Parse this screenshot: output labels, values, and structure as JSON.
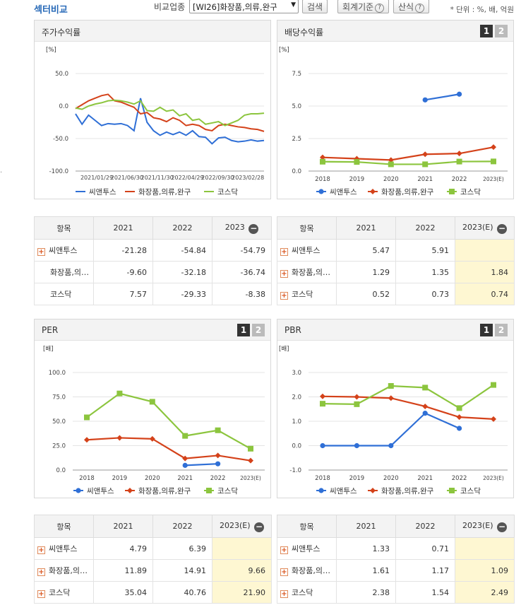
{
  "header": {
    "title": "섹터비교",
    "compare_label": "비교업종",
    "industry_selected": "[WI26]화장품,의류,완구",
    "search_button": "검색",
    "accounting_button": "회계기준",
    "formula_button": "산식",
    "help_glyph": "?",
    "unit_note": "* 단위 : %, 배, 억원"
  },
  "colors": {
    "company": "#2f6fd6",
    "industry": "#d4421a",
    "kosdaq": "#8cc53e"
  },
  "legend": {
    "company": "씨앤투스",
    "industry": "화장품,의류,완구",
    "kosdaq": "코스닥"
  },
  "pager": {
    "page1": "1",
    "page2": "2"
  },
  "tables": {
    "header_item": "항목",
    "minus_glyph": "−",
    "plus_glyph": "+"
  },
  "panels": {
    "stock_return": {
      "title": "주가수익률",
      "unit": "[%]"
    },
    "dividend": {
      "title": "배당수익률",
      "unit": "[%]"
    },
    "per": {
      "title": "PER",
      "unit": "[배]"
    },
    "pbr": {
      "title": "PBR",
      "unit": "[배]"
    }
  },
  "chart_data": [
    {
      "id": "stock_return",
      "type": "line",
      "title": "주가수익률",
      "ylabel": "[%]",
      "ylim": [
        -100,
        50
      ],
      "yticks": [
        "50.0",
        "0.0",
        "-50.0",
        "-100.0"
      ],
      "x_tick_labels": [
        "2021/01/29",
        "2021/06/30",
        "2021/11/30",
        "2022/04/29",
        "2022/09/30",
        "2023/02/28"
      ],
      "series": [
        {
          "name": "씨앤투스",
          "values": [
            -12,
            -28,
            -14,
            -22,
            -30,
            -27,
            -28,
            -27,
            -30,
            -38,
            12,
            -25,
            -38,
            -45,
            -40,
            -44,
            -40,
            -45,
            -38,
            -47,
            -48,
            -58,
            -49,
            -48,
            -53,
            -55,
            -54,
            -52,
            -54,
            -53
          ]
        },
        {
          "name": "화장품,의류,완구",
          "values": [
            -4,
            2,
            8,
            12,
            16,
            18,
            8,
            6,
            2,
            -2,
            -12,
            -10,
            -18,
            -20,
            -24,
            -18,
            -22,
            -30,
            -28,
            -30,
            -36,
            -38,
            -30,
            -28,
            -30,
            -32,
            -33,
            -35,
            -36,
            -39
          ]
        },
        {
          "name": "코스닥",
          "values": [
            -3,
            -5,
            0,
            3,
            5,
            8,
            9,
            8,
            6,
            3,
            8,
            -7,
            -8,
            -2,
            -8,
            -6,
            -15,
            -12,
            -22,
            -20,
            -28,
            -26,
            -24,
            -30,
            -26,
            -22,
            -14,
            -12,
            -12,
            -11
          ]
        }
      ]
    },
    {
      "id": "dividend",
      "type": "line",
      "title": "배당수익률",
      "ylabel": "[%]",
      "ylim": [
        0,
        7.5
      ],
      "yticks": [
        "7.5",
        "5.0",
        "2.5",
        "0.0"
      ],
      "categories": [
        "2018",
        "2019",
        "2020",
        "2021",
        "2022",
        "2023(E)"
      ],
      "series": [
        {
          "name": "씨앤투스",
          "values": [
            null,
            null,
            null,
            5.47,
            5.91,
            null
          ]
        },
        {
          "name": "화장품,의류,완구",
          "values": [
            1.05,
            0.95,
            0.85,
            1.29,
            1.35,
            1.84
          ]
        },
        {
          "name": "코스닥",
          "values": [
            0.72,
            0.7,
            0.52,
            0.52,
            0.73,
            0.74
          ]
        }
      ]
    },
    {
      "id": "per",
      "type": "line",
      "title": "PER",
      "ylabel": "[배]",
      "ylim": [
        0,
        100
      ],
      "yticks": [
        "100.0",
        "75.0",
        "50.0",
        "25.0",
        "0.0"
      ],
      "categories": [
        "2018",
        "2019",
        "2020",
        "2021",
        "2022",
        "2023(E)"
      ],
      "series": [
        {
          "name": "씨앤투스",
          "values": [
            null,
            null,
            null,
            4.79,
            6.39,
            null
          ]
        },
        {
          "name": "화장품,의류,완구",
          "values": [
            31.0,
            33.0,
            32.0,
            11.89,
            14.91,
            9.66
          ]
        },
        {
          "name": "코스닥",
          "values": [
            54.0,
            78.5,
            70.0,
            35.04,
            40.76,
            21.9
          ]
        }
      ]
    },
    {
      "id": "pbr",
      "type": "line",
      "title": "PBR",
      "ylabel": "[배]",
      "ylim": [
        -1,
        3
      ],
      "yticks": [
        "3.0",
        "2.0",
        "1.0",
        "0.0",
        "-1.0"
      ],
      "categories": [
        "2018",
        "2019",
        "2020",
        "2021",
        "2022",
        "2023(E)"
      ],
      "series": [
        {
          "name": "씨앤투스",
          "values": [
            0,
            0,
            0,
            1.33,
            0.71,
            null
          ]
        },
        {
          "name": "화장품,의류,완구",
          "values": [
            2.02,
            2.0,
            1.95,
            1.61,
            1.17,
            1.09
          ]
        },
        {
          "name": "코스닥",
          "values": [
            1.72,
            1.7,
            2.45,
            2.38,
            1.54,
            2.49
          ]
        }
      ]
    }
  ],
  "table_return": {
    "columns": [
      "2021",
      "2022",
      "2023"
    ],
    "rows": [
      {
        "name": "씨앤투스",
        "plus": true,
        "values": [
          "-21.28",
          "-54.84",
          "-54.79"
        ]
      },
      {
        "name": "화장품,의류,완구",
        "plus": false,
        "values": [
          "-9.60",
          "-32.18",
          "-36.74"
        ]
      },
      {
        "name": "코스닥",
        "plus": false,
        "values": [
          "7.57",
          "-29.33",
          "-8.38"
        ]
      }
    ]
  },
  "table_dividend": {
    "columns": [
      "2021",
      "2022",
      "2023(E)"
    ],
    "rows": [
      {
        "name": "씨앤투스",
        "plus": true,
        "values": [
          "5.47",
          "5.91",
          ""
        ]
      },
      {
        "name": "화장품,의류,완구",
        "plus": true,
        "values": [
          "1.29",
          "1.35",
          "1.84"
        ]
      },
      {
        "name": "코스닥",
        "plus": true,
        "values": [
          "0.52",
          "0.73",
          "0.74"
        ]
      }
    ]
  },
  "table_per": {
    "columns": [
      "2021",
      "2022",
      "2023(E)"
    ],
    "rows": [
      {
        "name": "씨앤투스",
        "plus": true,
        "values": [
          "4.79",
          "6.39",
          ""
        ]
      },
      {
        "name": "화장품,의류,완구",
        "plus": true,
        "values": [
          "11.89",
          "14.91",
          "9.66"
        ]
      },
      {
        "name": "코스닥",
        "plus": true,
        "values": [
          "35.04",
          "40.76",
          "21.90"
        ]
      }
    ]
  },
  "table_pbr": {
    "columns": [
      "2021",
      "2022",
      "2023(E)"
    ],
    "rows": [
      {
        "name": "씨앤투스",
        "plus": true,
        "values": [
          "1.33",
          "0.71",
          ""
        ]
      },
      {
        "name": "화장품,의류,완구",
        "plus": true,
        "values": [
          "1.61",
          "1.17",
          "1.09"
        ]
      },
      {
        "name": "코스닥",
        "plus": true,
        "values": [
          "2.38",
          "1.54",
          "2.49"
        ]
      }
    ]
  }
}
